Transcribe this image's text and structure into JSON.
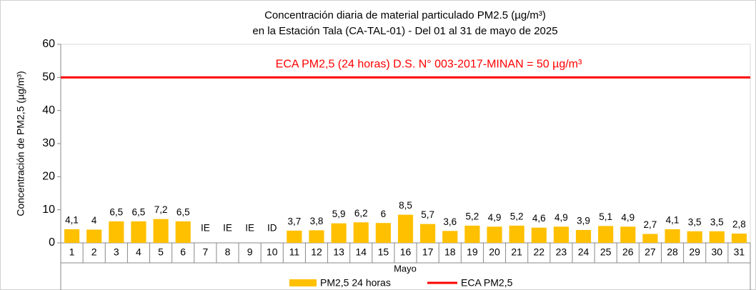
{
  "chart_data": {
    "type": "bar",
    "title": [
      "Concentración diaria de material particulado PM2.5 (µg/m³)",
      "en la Estación Tala (CA-TAL-01) - Del 01 al 31 de mayo de 2025"
    ],
    "annotation": "ECA PM2,5 (24 horas) D.S. N° 003-2017-MINAN = 50 µg/m³",
    "x_label": "Mayo",
    "y_label": "Concentración de PM2,5 (µg/m³)",
    "categories": [
      "1",
      "2",
      "3",
      "4",
      "5",
      "6",
      "7",
      "8",
      "9",
      "10",
      "11",
      "12",
      "13",
      "14",
      "15",
      "16",
      "17",
      "18",
      "19",
      "20",
      "21",
      "22",
      "23",
      "24",
      "25",
      "26",
      "27",
      "28",
      "29",
      "30",
      "31"
    ],
    "series": [
      {
        "name": "PM2,5 24 horas",
        "color": "#ffc000",
        "values": [
          4.1,
          4,
          6.5,
          6.5,
          7.2,
          6.5,
          null,
          null,
          null,
          null,
          3.7,
          3.8,
          5.9,
          6.2,
          6,
          8.5,
          5.7,
          3.6,
          5.2,
          4.9,
          5.2,
          4.6,
          4.9,
          3.9,
          5.1,
          4.9,
          2.7,
          4.1,
          3.5,
          3.5,
          2.8
        ],
        "value_labels": [
          "4,1",
          "4",
          "6,5",
          "6,5",
          "7,2",
          "6,5",
          "IE",
          "IE",
          "IE",
          "ID",
          "3,7",
          "3,8",
          "5,9",
          "6,2",
          "6",
          "8,5",
          "5,7",
          "3,6",
          "5,2",
          "4,9",
          "5,2",
          "4,6",
          "4,9",
          "3,9",
          "5,1",
          "4,9",
          "2,7",
          "4,1",
          "3,5",
          "3,5",
          "2,8"
        ]
      }
    ],
    "reference_line": {
      "name": "ECA PM2,5",
      "value": 50,
      "color": "#ff0000"
    },
    "ylim": [
      0,
      60
    ],
    "yticks": [
      0,
      10,
      20,
      30,
      40,
      50,
      60
    ]
  }
}
